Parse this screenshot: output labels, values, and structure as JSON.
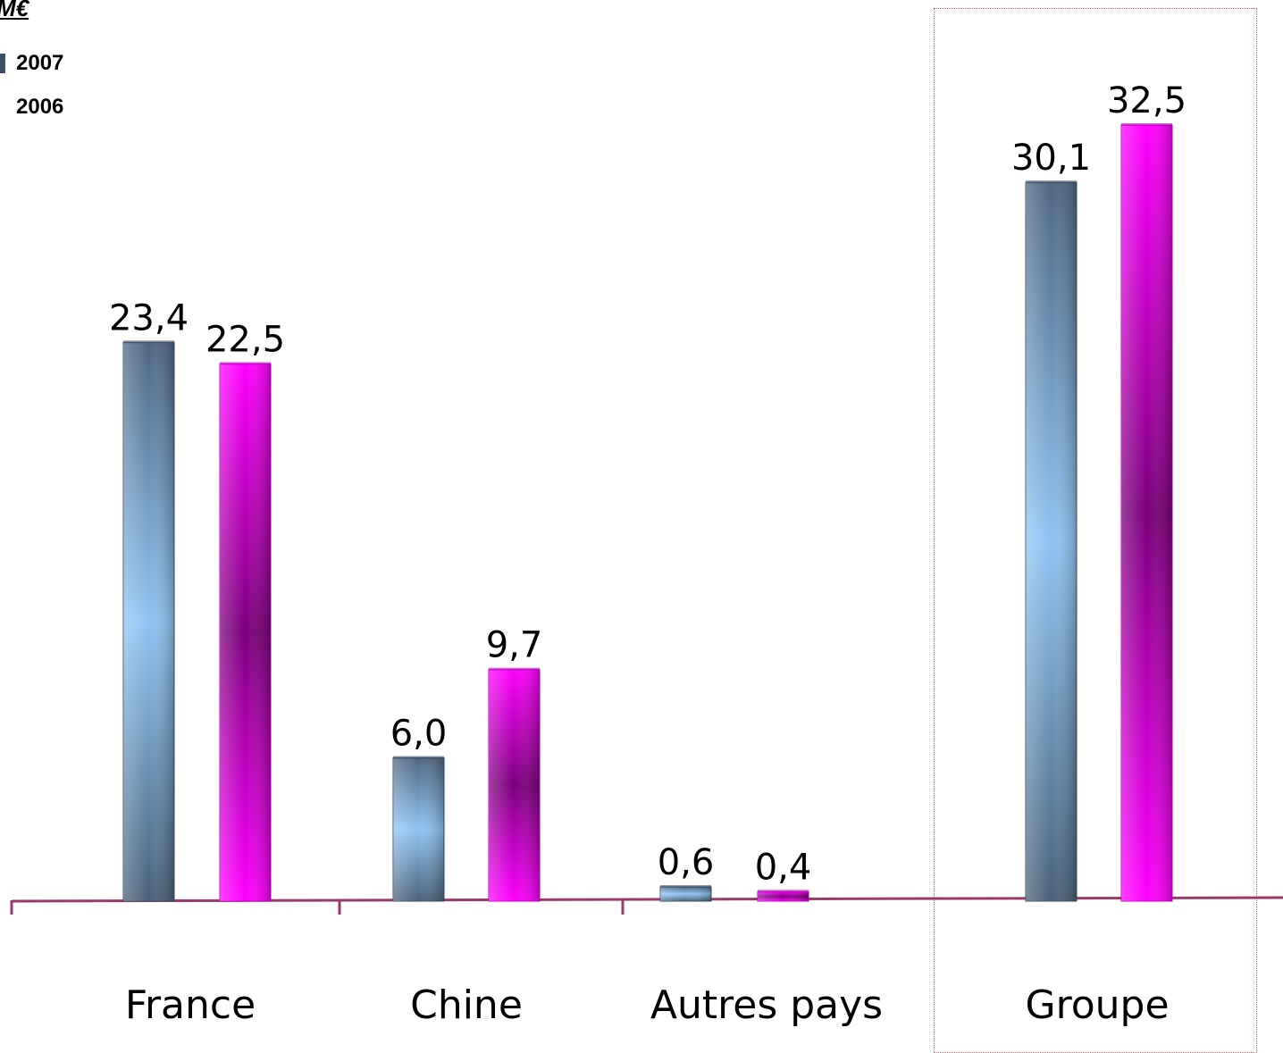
{
  "chart_data": {
    "type": "bar",
    "unit_label": "M€",
    "categories": [
      "France",
      "Chine",
      "Autres pays",
      "Groupe"
    ],
    "series": [
      {
        "name": "2007",
        "values": [
          23.4,
          6.0,
          0.6,
          30.1
        ],
        "labels": [
          "23,4",
          "6,0",
          "0,6",
          "30,1"
        ],
        "color": "#5a7a9a"
      },
      {
        "name": "2006",
        "values": [
          22.5,
          9.7,
          0.4,
          32.5
        ],
        "labels": [
          "22,5",
          "9,7",
          "0,4",
          "32,5"
        ],
        "color": "#ff00ff"
      }
    ],
    "ylim": [
      0,
      33
    ],
    "highlighted_category": "Groupe",
    "legend_position": "top-left",
    "grid": false
  }
}
